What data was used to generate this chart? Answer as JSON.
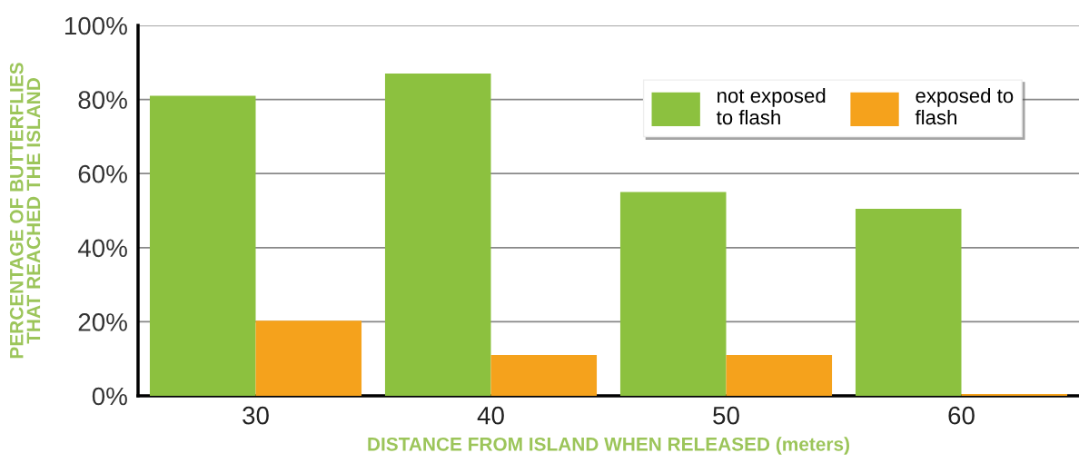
{
  "chart_data": {
    "type": "bar",
    "xlabel": "DISTANCE FROM ISLAND WHEN RELEASED (meters)",
    "ylabel": "PERCENTAGE OF BUTTERFLIES\nTHAT REACHED THE ISLAND",
    "categories": [
      "30",
      "40",
      "50",
      "60"
    ],
    "series": [
      {
        "name": "not exposed\nto flash",
        "color": "#8cc13f",
        "values": [
          81,
          87,
          55,
          50.5
        ]
      },
      {
        "name": "exposed to\nflash",
        "color": "#f5a21c",
        "values": [
          20.3,
          11,
          11,
          0.5
        ]
      }
    ],
    "ylim": [
      0,
      100
    ],
    "yticks": [
      {
        "value": 0,
        "label": "0%"
      },
      {
        "value": 20,
        "label": "20%"
      },
      {
        "value": 40,
        "label": "40%"
      },
      {
        "value": 60,
        "label": "60%"
      },
      {
        "value": 80,
        "label": "80%"
      },
      {
        "value": 100,
        "label": "100%"
      }
    ],
    "grid": "y",
    "legend": "top right"
  }
}
